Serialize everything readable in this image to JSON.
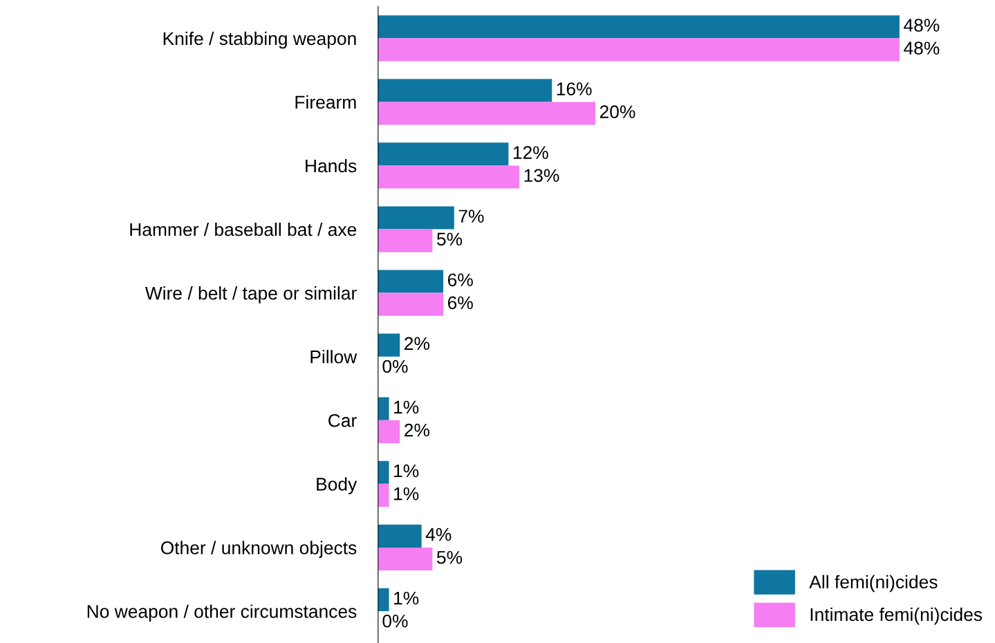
{
  "chart_data": {
    "type": "bar",
    "orientation": "horizontal",
    "categories": [
      "Knife / stabbing weapon",
      "Firearm",
      "Hands",
      "Hammer / baseball bat / axe",
      "Wire / belt / tape or similar",
      "Pillow",
      "Car",
      "Body",
      "Other / unknown objects",
      "No weapon / other circumstances"
    ],
    "series": [
      {
        "name": "All femi(ni)cides",
        "color": "#0e76a0",
        "values": [
          48,
          16,
          12,
          7,
          6,
          2,
          1,
          1,
          4,
          1
        ],
        "value_labels": [
          "48%",
          "16%",
          "12%",
          "7%",
          "6%",
          "2%",
          "1%",
          "1%",
          "4%",
          "1%"
        ]
      },
      {
        "name": "Intimate femi(ni)cides",
        "color": "#f57ef2",
        "values": [
          48,
          20,
          13,
          5,
          6,
          0,
          2,
          1,
          5,
          0
        ],
        "value_labels": [
          "48%",
          "20%",
          "13%",
          "5%",
          "6%",
          "0%",
          "2%",
          "1%",
          "5%",
          "0%"
        ]
      }
    ],
    "legend": "bottom right",
    "grid": false
  }
}
